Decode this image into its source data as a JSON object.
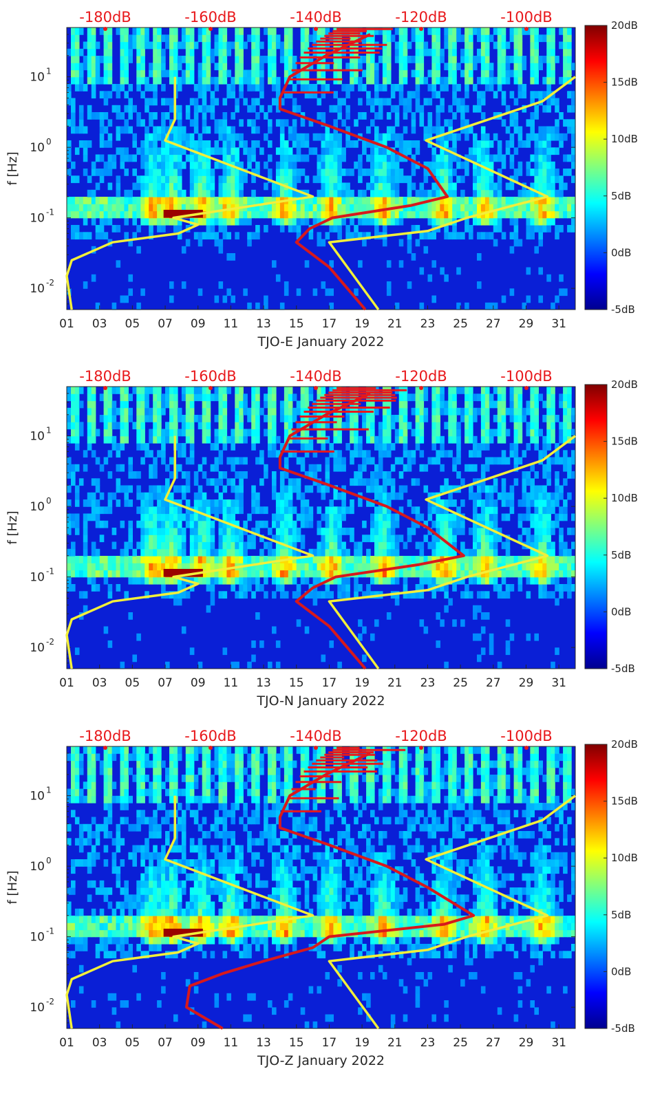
{
  "chart_data": [
    {
      "type": "heatmap",
      "station": "TJO-E",
      "xlabel": "TJO-E January 2022",
      "ylabel": "f [Hz]",
      "xlim": [
        1,
        32
      ],
      "ylim_hz": [
        0.005,
        50
      ],
      "x_ticks": [
        "01",
        "03",
        "05",
        "07",
        "09",
        "11",
        "13",
        "15",
        "17",
        "19",
        "21",
        "23",
        "25",
        "27",
        "29",
        "31"
      ],
      "y_ticks": [
        {
          "value": 0.01,
          "mant": "10",
          "exp": "-2"
        },
        {
          "value": 0.1,
          "mant": "10",
          "exp": "-1"
        },
        {
          "value": 1,
          "mant": "10",
          "exp": "0"
        },
        {
          "value": 10,
          "mant": "10",
          "exp": "1"
        }
      ],
      "top_axis_labels": [
        "-180dB",
        "-160dB",
        "-140dB",
        "-120dB",
        "-100dB"
      ],
      "colorbar": {
        "labels": [
          "20dB",
          "15dB",
          "10dB",
          "5dB",
          "0dB",
          "-5dB"
        ],
        "range_db": [
          -5,
          20
        ]
      },
      "noise_model_low": {
        "freq_hz": [
          0.005,
          0.015,
          0.025,
          0.045,
          0.06,
          0.08,
          0.1,
          0.2,
          1.25,
          2.5,
          10
        ],
        "day": [
          1.3,
          1.0,
          1.3,
          3.8,
          7.8,
          9.0,
          7.5,
          16.0,
          7.0,
          7.6,
          7.6
        ]
      },
      "noise_model_high": {
        "freq_hz": [
          0.005,
          0.045,
          0.065,
          0.1,
          0.2,
          1.25,
          4.5,
          10
        ],
        "day": [
          20.0,
          17.0,
          23.0,
          25.4,
          30.3,
          22.9,
          30.0,
          32.0
        ]
      },
      "median_psd": {
        "freq_hz": [
          0.005,
          0.02,
          0.045,
          0.07,
          0.1,
          0.15,
          0.2,
          0.5,
          1,
          2,
          3.5,
          5,
          10,
          20,
          40
        ],
        "day": [
          19.2,
          17.0,
          15.0,
          15.8,
          17.2,
          22.0,
          24.2,
          23.0,
          20.5,
          17.0,
          14.0,
          14.0,
          14.6,
          16.8,
          19.5
        ]
      }
    },
    {
      "type": "heatmap",
      "station": "TJO-N",
      "xlabel": "TJO-N January 2022",
      "ylabel": "f [Hz]",
      "xlim": [
        1,
        32
      ],
      "ylim_hz": [
        0.005,
        50
      ],
      "x_ticks": [
        "01",
        "03",
        "05",
        "07",
        "09",
        "11",
        "13",
        "15",
        "17",
        "19",
        "21",
        "23",
        "25",
        "27",
        "29",
        "31"
      ],
      "y_ticks": [
        {
          "value": 0.01,
          "mant": "10",
          "exp": "-2"
        },
        {
          "value": 0.1,
          "mant": "10",
          "exp": "-1"
        },
        {
          "value": 1,
          "mant": "10",
          "exp": "0"
        },
        {
          "value": 10,
          "mant": "10",
          "exp": "1"
        }
      ],
      "top_axis_labels": [
        "-180dB",
        "-160dB",
        "-140dB",
        "-120dB",
        "-100dB"
      ],
      "colorbar": {
        "labels": [
          "20dB",
          "15dB",
          "10dB",
          "5dB",
          "0dB",
          "-5dB"
        ],
        "range_db": [
          -5,
          20
        ]
      },
      "noise_model_low": {
        "freq_hz": [
          0.005,
          0.015,
          0.025,
          0.045,
          0.06,
          0.08,
          0.1,
          0.2,
          1.25,
          2.5,
          10
        ],
        "day": [
          1.3,
          1.0,
          1.3,
          3.8,
          7.8,
          9.0,
          7.5,
          16.0,
          7.0,
          7.6,
          7.6
        ]
      },
      "noise_model_high": {
        "freq_hz": [
          0.005,
          0.045,
          0.065,
          0.1,
          0.2,
          1.25,
          4.5,
          10
        ],
        "day": [
          20.0,
          17.0,
          23.0,
          25.4,
          30.3,
          22.9,
          30.0,
          32.0
        ]
      },
      "median_psd": {
        "freq_hz": [
          0.005,
          0.02,
          0.045,
          0.07,
          0.1,
          0.15,
          0.2,
          0.5,
          1,
          2,
          3.5,
          5,
          10,
          20,
          40
        ],
        "day": [
          19.2,
          17.0,
          15.0,
          16.0,
          17.4,
          22.5,
          25.2,
          23.0,
          20.5,
          17.0,
          14.0,
          14.0,
          14.6,
          16.8,
          19.5
        ]
      }
    },
    {
      "type": "heatmap",
      "station": "TJO-Z",
      "xlabel": "TJO-Z January 2022",
      "ylabel": "f [Hz]",
      "xlim": [
        1,
        32
      ],
      "ylim_hz": [
        0.005,
        50
      ],
      "x_ticks": [
        "01",
        "03",
        "05",
        "07",
        "09",
        "11",
        "13",
        "15",
        "17",
        "19",
        "21",
        "23",
        "25",
        "27",
        "29",
        "31"
      ],
      "y_ticks": [
        {
          "value": 0.01,
          "mant": "10",
          "exp": "-2"
        },
        {
          "value": 0.1,
          "mant": "10",
          "exp": "-1"
        },
        {
          "value": 1,
          "mant": "10",
          "exp": "0"
        },
        {
          "value": 10,
          "mant": "10",
          "exp": "1"
        }
      ],
      "top_axis_labels": [
        "-180dB",
        "-160dB",
        "-140dB",
        "-120dB",
        "-100dB"
      ],
      "colorbar": {
        "labels": [
          "20dB",
          "15dB",
          "10dB",
          "5dB",
          "0dB",
          "-5dB"
        ],
        "range_db": [
          -5,
          20
        ]
      },
      "noise_model_low": {
        "freq_hz": [
          0.005,
          0.015,
          0.025,
          0.045,
          0.06,
          0.08,
          0.1,
          0.2,
          1.25,
          2.5,
          10
        ],
        "day": [
          1.3,
          1.0,
          1.3,
          3.8,
          7.8,
          9.0,
          7.5,
          16.0,
          7.0,
          7.6,
          7.6
        ]
      },
      "noise_model_high": {
        "freq_hz": [
          0.005,
          0.045,
          0.065,
          0.1,
          0.2,
          1.25,
          4.5,
          10
        ],
        "day": [
          20.0,
          17.0,
          23.0,
          25.4,
          30.3,
          22.9,
          30.0,
          32.0
        ]
      },
      "median_psd": {
        "freq_hz": [
          0.005,
          0.01,
          0.02,
          0.03,
          0.045,
          0.07,
          0.1,
          0.15,
          0.2,
          0.5,
          1,
          2,
          3.5,
          5,
          10,
          20,
          40
        ],
        "day": [
          10.5,
          8.3,
          8.5,
          10.5,
          13.0,
          16.0,
          17.0,
          24.0,
          25.8,
          23.0,
          20.5,
          17.0,
          14.0,
          14.0,
          14.6,
          16.8,
          19.5
        ]
      }
    }
  ]
}
